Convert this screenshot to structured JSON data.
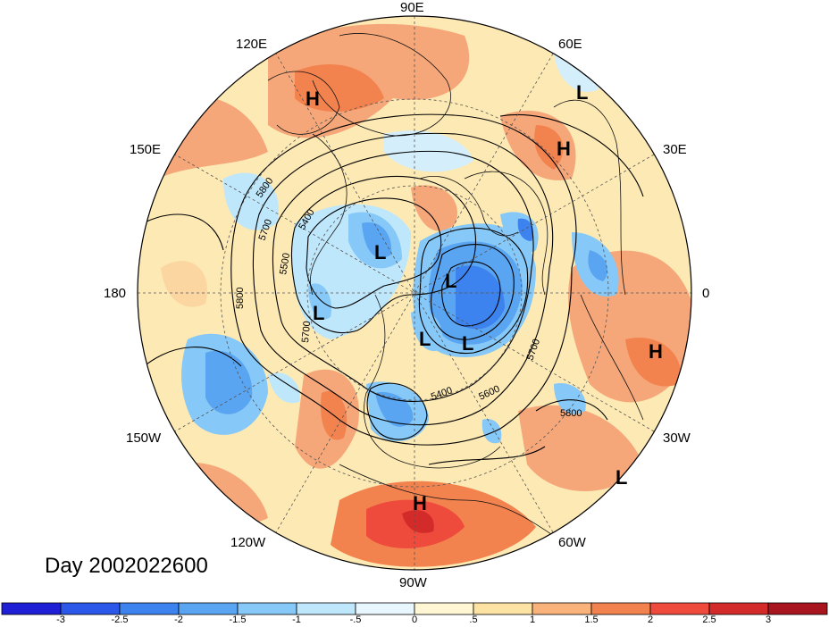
{
  "title": "Day 2002022600",
  "longitude_labels": [
    "90E",
    "60E",
    "30E",
    "0",
    "30W",
    "60W",
    "90W",
    "120W",
    "150W",
    "180",
    "150E",
    "120E"
  ],
  "colorbar": {
    "ticks": [
      "-3",
      "-2.5",
      "-2",
      "-1.5",
      "-1",
      "-.5",
      "0",
      ".5",
      "1",
      "1.5",
      "2",
      "2.5",
      "3"
    ],
    "colors": [
      "#1f1fd6",
      "#2b58e8",
      "#3d83ef",
      "#5aa5f2",
      "#86c8f7",
      "#bfe7fb",
      "#e8f7fd",
      "#fff7d4",
      "#fde3a3",
      "#f9b27a",
      "#f2834f",
      "#ee4b3c",
      "#d32a2a",
      "#a8151f"
    ]
  },
  "contour_labels": [
    "5800",
    "5700",
    "5400",
    "5500",
    "5800",
    "5700",
    "5400",
    "5600",
    "5700",
    "5800"
  ],
  "pressure_centers": [
    {
      "type": "H",
      "label": "H"
    },
    {
      "type": "L",
      "label": "L"
    },
    {
      "type": "H",
      "label": "H"
    },
    {
      "type": "L",
      "label": "L"
    },
    {
      "type": "L",
      "label": "L"
    },
    {
      "type": "L",
      "label": "L"
    },
    {
      "type": "L",
      "label": "L"
    },
    {
      "type": "L",
      "label": "L"
    },
    {
      "type": "H",
      "label": "H"
    },
    {
      "type": "L",
      "label": "L"
    },
    {
      "type": "H",
      "label": "H"
    }
  ]
}
